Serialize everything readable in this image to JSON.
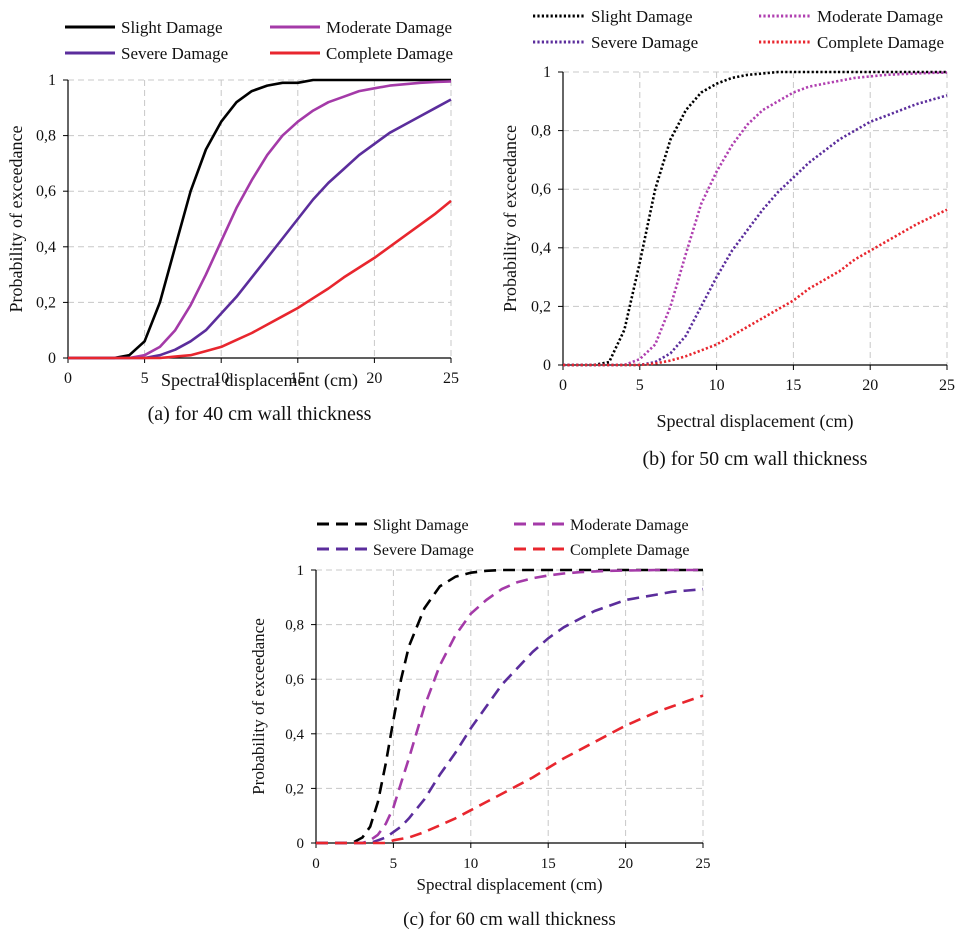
{
  "chart_data": [
    {
      "type": "line",
      "caption": "(a) for 40 cm wall thickness",
      "xlabel": "Spectral displacement (cm)",
      "ylabel": "Probability of exceedance",
      "xlim": [
        0,
        25
      ],
      "ylim": [
        0,
        1
      ],
      "x_ticks": [
        "0",
        "5",
        "10",
        "15",
        "20",
        "25"
      ],
      "y_ticks": [
        "0",
        "0,2",
        "0,4",
        "0,6",
        "0,8",
        "1"
      ],
      "grid": true,
      "legend_position": "top",
      "line_style": "solid",
      "x": [
        0,
        2,
        3,
        4,
        5,
        6,
        7,
        8,
        9,
        10,
        11,
        12,
        13,
        14,
        15,
        16,
        17,
        18,
        19,
        20,
        21,
        22,
        23,
        24,
        25
      ],
      "series": [
        {
          "name": "Slight Damage",
          "color": "#000000",
          "values": [
            0,
            0,
            0,
            0.01,
            0.06,
            0.2,
            0.4,
            0.6,
            0.75,
            0.85,
            0.92,
            0.96,
            0.98,
            0.99,
            0.99,
            1,
            1,
            1,
            1,
            1,
            1,
            1,
            1,
            1,
            1
          ]
        },
        {
          "name": "Moderate Damage",
          "color": "#a43aa8",
          "values": [
            0,
            0,
            0,
            0,
            0.01,
            0.04,
            0.1,
            0.19,
            0.3,
            0.42,
            0.54,
            0.64,
            0.73,
            0.8,
            0.85,
            0.89,
            0.92,
            0.94,
            0.96,
            0.97,
            0.98,
            0.985,
            0.99,
            0.993,
            0.995
          ]
        },
        {
          "name": "Severe Damage",
          "color": "#5b2d9c",
          "values": [
            0,
            0,
            0,
            0,
            0,
            0.01,
            0.03,
            0.06,
            0.1,
            0.16,
            0.22,
            0.29,
            0.36,
            0.43,
            0.5,
            0.57,
            0.63,
            0.68,
            0.73,
            0.77,
            0.81,
            0.84,
            0.87,
            0.9,
            0.93
          ]
        },
        {
          "name": "Complete Damage",
          "color": "#e8262e",
          "values": [
            0,
            0,
            0,
            0,
            0,
            0,
            0.005,
            0.01,
            0.025,
            0.04,
            0.065,
            0.09,
            0.12,
            0.15,
            0.18,
            0.215,
            0.25,
            0.29,
            0.325,
            0.36,
            0.4,
            0.44,
            0.48,
            0.52,
            0.565
          ]
        }
      ]
    },
    {
      "type": "line",
      "caption": "(b) for 50 cm wall thickness",
      "xlabel": "Spectral displacement (cm)",
      "ylabel": "Probability of exceedance",
      "xlim": [
        0,
        25
      ],
      "ylim": [
        0,
        1
      ],
      "x_ticks": [
        "0",
        "5",
        "10",
        "15",
        "20",
        "25"
      ],
      "y_ticks": [
        "0",
        "0,2",
        "0,4",
        "0,6",
        "0,8",
        "1"
      ],
      "grid": true,
      "legend_position": "top",
      "line_style": "dotted",
      "x": [
        0,
        2,
        3,
        4,
        5,
        6,
        7,
        8,
        9,
        10,
        11,
        12,
        13,
        14,
        15,
        16,
        17,
        18,
        19,
        20,
        21,
        22,
        23,
        24,
        25
      ],
      "series": [
        {
          "name": "Slight Damage",
          "color": "#000000",
          "values": [
            0,
            0,
            0.01,
            0.12,
            0.35,
            0.6,
            0.77,
            0.87,
            0.93,
            0.96,
            0.98,
            0.99,
            0.995,
            1,
            1,
            1,
            1,
            1,
            1,
            1,
            1,
            1,
            1,
            1,
            1
          ]
        },
        {
          "name": "Moderate Damage",
          "color": "#b040b0",
          "values": [
            0,
            0,
            0,
            0,
            0.02,
            0.07,
            0.2,
            0.38,
            0.55,
            0.66,
            0.75,
            0.82,
            0.87,
            0.9,
            0.93,
            0.95,
            0.96,
            0.97,
            0.98,
            0.985,
            0.99,
            0.993,
            0.995,
            0.997,
            0.998
          ]
        },
        {
          "name": "Severe Damage",
          "color": "#5b2d9c",
          "values": [
            0,
            0,
            0,
            0,
            0,
            0.01,
            0.04,
            0.1,
            0.2,
            0.3,
            0.39,
            0.46,
            0.53,
            0.59,
            0.64,
            0.69,
            0.73,
            0.77,
            0.8,
            0.83,
            0.85,
            0.87,
            0.89,
            0.905,
            0.92
          ]
        },
        {
          "name": "Complete Damage",
          "color": "#e8262e",
          "values": [
            0,
            0,
            0,
            0,
            0,
            0.005,
            0.015,
            0.03,
            0.05,
            0.07,
            0.1,
            0.13,
            0.16,
            0.19,
            0.22,
            0.26,
            0.29,
            0.32,
            0.36,
            0.39,
            0.42,
            0.45,
            0.48,
            0.505,
            0.53
          ]
        }
      ]
    },
    {
      "type": "line",
      "caption": "(c) for 60 cm wall thickness",
      "xlabel": "Spectral displacement (cm)",
      "ylabel": "Probability of exceedance",
      "xlim": [
        0,
        25
      ],
      "ylim": [
        0,
        1
      ],
      "x_ticks": [
        "0",
        "5",
        "10",
        "15",
        "20",
        "25"
      ],
      "y_ticks": [
        "0",
        "0,2",
        "0,4",
        "0,6",
        "0,8",
        "1"
      ],
      "grid": true,
      "legend_position": "top",
      "line_style": "dashed",
      "x": [
        0,
        2,
        2.5,
        3,
        3.5,
        4,
        4.5,
        5,
        5.5,
        6,
        7,
        8,
        9,
        10,
        11,
        12,
        13,
        14,
        15,
        16,
        17,
        18,
        19,
        20,
        21,
        22,
        23,
        24,
        25
      ],
      "series": [
        {
          "name": "Slight Damage",
          "color": "#000000",
          "values": [
            0,
            0,
            0.005,
            0.02,
            0.06,
            0.15,
            0.29,
            0.45,
            0.6,
            0.72,
            0.86,
            0.94,
            0.975,
            0.99,
            0.997,
            1,
            1,
            1,
            1,
            1,
            1,
            1,
            1,
            1,
            1,
            1,
            1,
            1,
            1
          ]
        },
        {
          "name": "Moderate Damage",
          "color": "#a43aa8",
          "values": [
            0,
            0,
            0,
            0,
            0.01,
            0.03,
            0.07,
            0.13,
            0.22,
            0.31,
            0.5,
            0.65,
            0.76,
            0.84,
            0.89,
            0.93,
            0.955,
            0.97,
            0.98,
            0.987,
            0.992,
            0.995,
            0.997,
            0.998,
            0.999,
            1,
            1,
            1,
            1
          ]
        },
        {
          "name": "Severe Damage",
          "color": "#5b2d9c",
          "values": [
            0,
            0,
            0,
            0,
            0,
            0.01,
            0.02,
            0.04,
            0.06,
            0.09,
            0.16,
            0.25,
            0.33,
            0.42,
            0.5,
            0.58,
            0.64,
            0.7,
            0.75,
            0.79,
            0.82,
            0.85,
            0.87,
            0.89,
            0.9,
            0.91,
            0.92,
            0.925,
            0.93
          ]
        },
        {
          "name": "Complete Damage",
          "color": "#e8262e",
          "values": [
            0,
            0,
            0,
            0,
            0,
            0,
            0,
            0.01,
            0.015,
            0.02,
            0.04,
            0.065,
            0.09,
            0.12,
            0.15,
            0.18,
            0.21,
            0.24,
            0.275,
            0.31,
            0.34,
            0.37,
            0.4,
            0.43,
            0.455,
            0.48,
            0.5,
            0.52,
            0.54
          ]
        }
      ]
    }
  ]
}
